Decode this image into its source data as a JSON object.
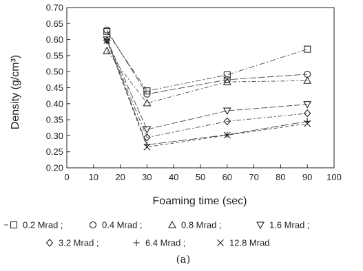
{
  "chart_data": {
    "type": "scatter",
    "title": "",
    "xlabel": "Foaming time (sec)",
    "ylabel": "Density (g/cm³)",
    "xlim": [
      0,
      100
    ],
    "ylim": [
      0.2,
      0.7
    ],
    "xticks": [
      0,
      10,
      20,
      30,
      40,
      50,
      60,
      70,
      80,
      90,
      100
    ],
    "yticks": [
      "0.20",
      "0.25",
      "0.30",
      "0.35",
      "0.40",
      "0.45",
      "0.50",
      "0.55",
      "0.60",
      "0.65",
      "0.70"
    ],
    "grid": false,
    "legend_position": "bottom",
    "caption": "(a)",
    "series": [
      {
        "name": "0.2 Mrad ;",
        "marker": "square",
        "x": [
          15,
          30,
          60,
          90
        ],
        "y": [
          0.625,
          0.44,
          0.49,
          0.57
        ]
      },
      {
        "name": "0.4 Mrad ;",
        "marker": "circle",
        "x": [
          15,
          30,
          60,
          90
        ],
        "y": [
          0.63,
          0.43,
          0.475,
          0.492
        ]
      },
      {
        "name": "0.8 Mrad ;",
        "marker": "triangle-up",
        "x": [
          15,
          30,
          60,
          90
        ],
        "y": [
          0.565,
          0.402,
          0.468,
          0.472
        ]
      },
      {
        "name": "1.6 Mrad ;",
        "marker": "triangle-down",
        "x": [
          15,
          30,
          60,
          90
        ],
        "y": [
          0.6,
          0.32,
          0.378,
          0.398
        ]
      },
      {
        "name": "3.2 Mrad ;",
        "marker": "diamond",
        "x": [
          15,
          30,
          60,
          90
        ],
        "y": [
          0.598,
          0.295,
          0.345,
          0.37
        ]
      },
      {
        "name": "6.4 Mrad ;",
        "marker": "plus",
        "x": [
          15,
          30,
          60,
          90
        ],
        "y": [
          0.6,
          0.272,
          0.303,
          0.345
        ]
      },
      {
        "name": "12.8 Mrad",
        "marker": "x",
        "x": [
          15,
          30,
          60,
          90
        ],
        "y": [
          0.597,
          0.265,
          0.302,
          0.338
        ]
      }
    ]
  }
}
